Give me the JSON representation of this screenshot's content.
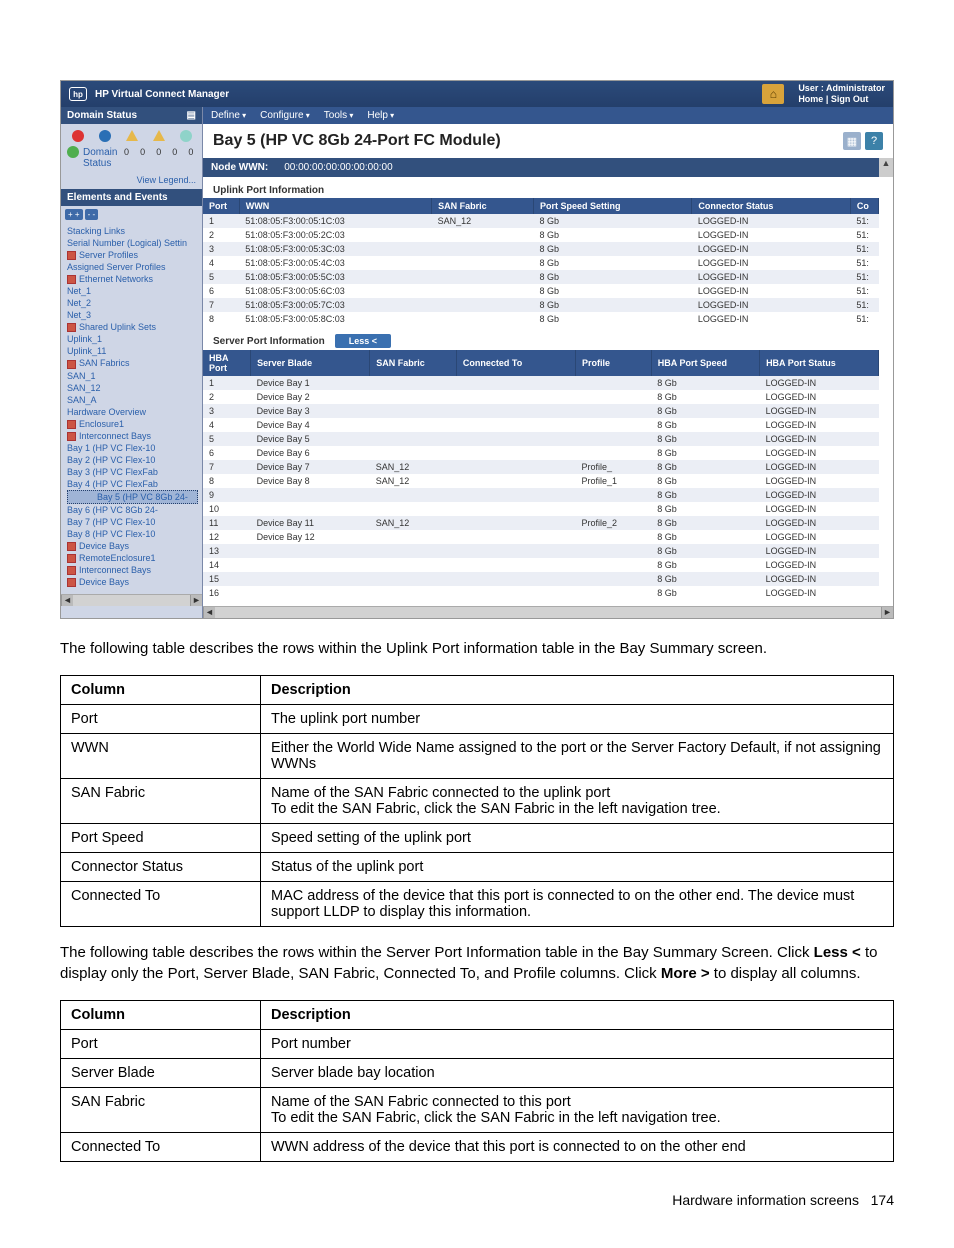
{
  "header": {
    "app_title": "HP Virtual Connect Manager",
    "user_label": "User : Administrator",
    "home": "Home",
    "signout": "Sign Out"
  },
  "sidebar": {
    "domain_status_hdr": "Domain Status",
    "domain_label": "Domain",
    "status_label": "Status",
    "counts": [
      "0",
      "0",
      "0",
      "0",
      "0"
    ],
    "view_legend": "View Legend...",
    "elements_hdr": "Elements and Events",
    "tree": [
      {
        "lvl": 1,
        "txt": "Stacking Links"
      },
      {
        "lvl": 2,
        "txt": "Serial Number (Logical) Settin"
      },
      {
        "lvl": 1,
        "txt": "Server Profiles",
        "ico": true
      },
      {
        "lvl": 2,
        "txt": "Assigned Server Profiles"
      },
      {
        "lvl": 1,
        "txt": "Ethernet Networks",
        "ico": true
      },
      {
        "lvl": 2,
        "txt": "Net_1"
      },
      {
        "lvl": 2,
        "txt": "Net_2"
      },
      {
        "lvl": 2,
        "txt": "Net_3"
      },
      {
        "lvl": 1,
        "txt": "Shared Uplink Sets",
        "ico": true
      },
      {
        "lvl": 2,
        "txt": "Uplink_1"
      },
      {
        "lvl": 2,
        "txt": "Uplink_11"
      },
      {
        "lvl": 1,
        "txt": "SAN Fabrics",
        "ico": true
      },
      {
        "lvl": 2,
        "txt": "SAN_1"
      },
      {
        "lvl": 2,
        "txt": "SAN_12"
      },
      {
        "lvl": 2,
        "txt": "SAN_A"
      },
      {
        "lvl": 1,
        "txt": "Hardware Overview"
      },
      {
        "lvl": 1,
        "txt": "Enclosure1",
        "ico": true
      },
      {
        "lvl": 1,
        "txt": "Interconnect Bays",
        "ico": true
      },
      {
        "lvl": 2,
        "txt": "Bay 1 (HP VC Flex-10"
      },
      {
        "lvl": 2,
        "txt": "Bay 2 (HP VC Flex-10"
      },
      {
        "lvl": 2,
        "txt": "Bay 3 (HP VC FlexFab"
      },
      {
        "lvl": 2,
        "txt": "Bay 4 (HP VC FlexFab"
      },
      {
        "lvl": 2,
        "txt": "Bay 5 (HP VC 8Gb 24-",
        "sel": true
      },
      {
        "lvl": 2,
        "txt": "Bay 6 (HP VC 8Gb 24-"
      },
      {
        "lvl": 2,
        "txt": "Bay 7 (HP VC Flex-10"
      },
      {
        "lvl": 2,
        "txt": "Bay 8 (HP VC Flex-10"
      },
      {
        "lvl": 1,
        "txt": "Device Bays",
        "ico": true
      },
      {
        "lvl": 0,
        "txt": "RemoteEnclosure1",
        "ico": true
      },
      {
        "lvl": 1,
        "txt": "Interconnect Bays",
        "ico": true
      },
      {
        "lvl": 1,
        "txt": "Device Bays",
        "ico": true
      }
    ]
  },
  "menubar": [
    "Define",
    "Configure",
    "Tools",
    "Help"
  ],
  "main_title": "Bay 5 (HP VC 8Gb 24-Port FC Module)",
  "ribbon": {
    "label": "Node WWN:",
    "value": "00:00:00:00:00:00:00:00"
  },
  "uplink": {
    "title": "Uplink Port Information",
    "cols": [
      "Port",
      "WWN",
      "SAN Fabric",
      "Port Speed Setting",
      "Connector Status",
      "Co"
    ],
    "rows": [
      [
        "1",
        "51:08:05:F3:00:05:1C:03",
        "SAN_12",
        "8 Gb",
        "LOGGED-IN",
        "51:"
      ],
      [
        "2",
        "51:08:05:F3:00:05:2C:03",
        "",
        "8 Gb",
        "LOGGED-IN",
        "51:"
      ],
      [
        "3",
        "51:08:05:F3:00:05:3C:03",
        "",
        "8 Gb",
        "LOGGED-IN",
        "51:"
      ],
      [
        "4",
        "51:08:05:F3:00:05:4C:03",
        "",
        "8 Gb",
        "LOGGED-IN",
        "51:"
      ],
      [
        "5",
        "51:08:05:F3:00:05:5C:03",
        "",
        "8 Gb",
        "LOGGED-IN",
        "51:"
      ],
      [
        "6",
        "51:08:05:F3:00:05:6C:03",
        "",
        "8 Gb",
        "LOGGED-IN",
        "51:"
      ],
      [
        "7",
        "51:08:05:F3:00:05:7C:03",
        "",
        "8 Gb",
        "LOGGED-IN",
        "51:"
      ],
      [
        "8",
        "51:08:05:F3:00:05:8C:03",
        "",
        "8 Gb",
        "LOGGED-IN",
        "51:"
      ]
    ]
  },
  "serverport": {
    "title": "Server Port Information",
    "less_label": "Less <",
    "cols": [
      "HBA Port",
      "Server Blade",
      "SAN Fabric",
      "Connected To",
      "Profile",
      "HBA Port Speed",
      "HBA Port Status"
    ],
    "rows": [
      [
        "1",
        "Device Bay 1",
        "",
        "",
        "",
        "8 Gb",
        "LOGGED-IN"
      ],
      [
        "2",
        "Device Bay 2",
        "",
        "",
        "",
        "8 Gb",
        "LOGGED-IN"
      ],
      [
        "3",
        "Device Bay 3",
        "",
        "",
        "",
        "8 Gb",
        "LOGGED-IN"
      ],
      [
        "4",
        "Device Bay 4",
        "",
        "",
        "",
        "8 Gb",
        "LOGGED-IN"
      ],
      [
        "5",
        "Device Bay 5",
        "",
        "",
        "",
        "8 Gb",
        "LOGGED-IN"
      ],
      [
        "6",
        "Device Bay 6",
        "",
        "",
        "",
        "8 Gb",
        "LOGGED-IN"
      ],
      [
        "7",
        "Device Bay 7",
        "SAN_12",
        "",
        "Profile_",
        "8 Gb",
        "LOGGED-IN"
      ],
      [
        "8",
        "Device Bay 8",
        "SAN_12",
        "",
        "Profile_1",
        "8 Gb",
        "LOGGED-IN"
      ],
      [
        "9",
        "",
        "",
        "",
        "",
        "8 Gb",
        "LOGGED-IN"
      ],
      [
        "10",
        "",
        "",
        "",
        "",
        "8 Gb",
        "LOGGED-IN"
      ],
      [
        "11",
        "Device Bay 11",
        "SAN_12",
        "",
        "Profile_2",
        "8 Gb",
        "LOGGED-IN"
      ],
      [
        "12",
        "Device Bay 12",
        "",
        "",
        "",
        "8 Gb",
        "LOGGED-IN"
      ],
      [
        "13",
        "",
        "",
        "",
        "",
        "8 Gb",
        "LOGGED-IN"
      ],
      [
        "14",
        "",
        "",
        "",
        "",
        "8 Gb",
        "LOGGED-IN"
      ],
      [
        "15",
        "",
        "",
        "",
        "",
        "8 Gb",
        "LOGGED-IN"
      ],
      [
        "16",
        "",
        "",
        "",
        "",
        "8 Gb",
        "LOGGED-IN"
      ]
    ]
  },
  "body": {
    "p1": "The following table describes the rows within the Uplink Port information table in the Bay Summary screen.",
    "t1": {
      "head": [
        "Column",
        "Description"
      ],
      "rows": [
        [
          "Port",
          "The uplink port number"
        ],
        [
          "WWN",
          "Either the World Wide Name assigned to the port or the Server Factory Default, if not assigning WWNs"
        ],
        [
          "SAN Fabric",
          "Name of the SAN Fabric connected to the uplink port\nTo edit the SAN Fabric, click the SAN Fabric in the left navigation tree."
        ],
        [
          "Port Speed",
          "Speed setting of the uplink port"
        ],
        [
          "Connector Status",
          "Status of the uplink port"
        ],
        [
          "Connected To",
          "MAC address of the device that this port is connected to on the other end. The device must support LLDP to display this information."
        ]
      ]
    },
    "p2_a": "The following table describes the rows within the Server Port Information table in the Bay Summary Screen. Click ",
    "p2_b": "Less <",
    "p2_c": " to display only the Port, Server Blade, SAN Fabric, Connected To, and Profile columns. Click ",
    "p2_d": "More >",
    "p2_e": " to display all columns.",
    "t2": {
      "head": [
        "Column",
        "Description"
      ],
      "rows": [
        [
          "Port",
          "Port number"
        ],
        [
          "Server Blade",
          "Server blade bay location"
        ],
        [
          "SAN Fabric",
          "Name of the SAN Fabric connected to this port\nTo edit the SAN Fabric, click the SAN Fabric in the left navigation tree."
        ],
        [
          "Connected To",
          "WWN address of the device that this port is connected to on the other end"
        ]
      ]
    },
    "footer_a": "Hardware information screens",
    "footer_b": "174"
  }
}
